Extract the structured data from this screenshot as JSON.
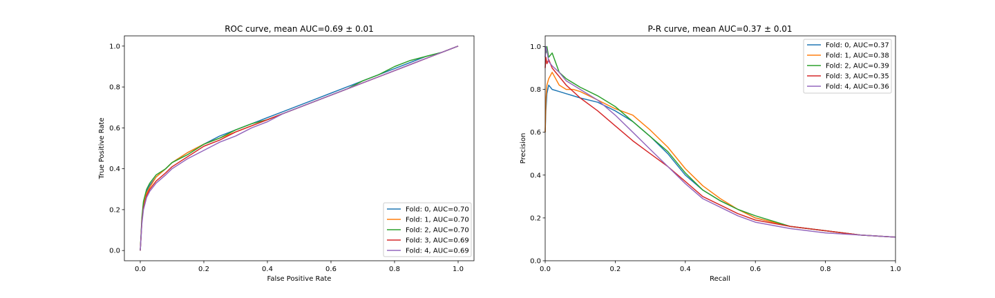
{
  "colors": {
    "fold0": "#1f77b4",
    "fold1": "#ff7f0e",
    "fold2": "#2ca02c",
    "fold3": "#d62728",
    "fold4": "#9467bd"
  },
  "chart_data": [
    {
      "type": "line",
      "title": "ROC curve, mean AUC=0.69 ± 0.01",
      "xlabel": "False Positive Rate",
      "ylabel": "True Positive Rate",
      "xlim": [
        -0.05,
        1.05
      ],
      "ylim": [
        -0.05,
        1.05
      ],
      "xticks": [
        0.0,
        0.2,
        0.4,
        0.6,
        0.8,
        1.0
      ],
      "yticks": [
        0.0,
        0.2,
        0.4,
        0.6,
        0.8,
        1.0
      ],
      "xtick_labels": [
        "0.0",
        "0.2",
        "0.4",
        "0.6",
        "0.8",
        "1.0"
      ],
      "ytick_labels": [
        "0.0",
        "0.2",
        "0.4",
        "0.6",
        "0.8",
        "1.0"
      ],
      "grid": false,
      "legend_position": "lower-right",
      "series": [
        {
          "name": "Fold: 0, AUC=0.70",
          "color_key": "fold0",
          "x": [
            0,
            0.005,
            0.01,
            0.02,
            0.03,
            0.05,
            0.08,
            0.1,
            0.15,
            0.2,
            0.25,
            0.3,
            0.35,
            0.4,
            0.45,
            0.5,
            0.55,
            0.6,
            0.65,
            0.7,
            0.75,
            0.8,
            0.85,
            0.9,
            0.95,
            1.0
          ],
          "y": [
            0,
            0.15,
            0.23,
            0.29,
            0.32,
            0.36,
            0.4,
            0.43,
            0.48,
            0.52,
            0.56,
            0.59,
            0.62,
            0.65,
            0.68,
            0.71,
            0.74,
            0.77,
            0.8,
            0.83,
            0.86,
            0.89,
            0.92,
            0.95,
            0.97,
            1.0
          ]
        },
        {
          "name": "Fold: 1, AUC=0.70",
          "color_key": "fold1",
          "x": [
            0,
            0.005,
            0.01,
            0.02,
            0.03,
            0.05,
            0.08,
            0.1,
            0.15,
            0.2,
            0.25,
            0.3,
            0.35,
            0.4,
            0.45,
            0.5,
            0.55,
            0.6,
            0.65,
            0.7,
            0.75,
            0.8,
            0.85,
            0.9,
            0.95,
            1.0
          ],
          "y": [
            0,
            0.14,
            0.22,
            0.28,
            0.31,
            0.36,
            0.4,
            0.43,
            0.48,
            0.52,
            0.55,
            0.58,
            0.61,
            0.64,
            0.67,
            0.7,
            0.73,
            0.76,
            0.79,
            0.82,
            0.85,
            0.88,
            0.91,
            0.94,
            0.97,
            1.0
          ]
        },
        {
          "name": "Fold: 2, AUC=0.70",
          "color_key": "fold2",
          "x": [
            0,
            0.005,
            0.01,
            0.02,
            0.03,
            0.05,
            0.08,
            0.1,
            0.15,
            0.2,
            0.25,
            0.3,
            0.35,
            0.4,
            0.45,
            0.5,
            0.55,
            0.6,
            0.65,
            0.7,
            0.75,
            0.8,
            0.85,
            0.9,
            0.95,
            1.0
          ],
          "y": [
            0,
            0.16,
            0.24,
            0.3,
            0.33,
            0.37,
            0.4,
            0.43,
            0.47,
            0.52,
            0.55,
            0.59,
            0.62,
            0.64,
            0.67,
            0.7,
            0.73,
            0.76,
            0.79,
            0.83,
            0.86,
            0.9,
            0.93,
            0.95,
            0.97,
            1.0
          ]
        },
        {
          "name": "Fold: 3, AUC=0.69",
          "color_key": "fold3",
          "x": [
            0,
            0.005,
            0.01,
            0.02,
            0.03,
            0.05,
            0.08,
            0.1,
            0.15,
            0.2,
            0.25,
            0.3,
            0.35,
            0.4,
            0.45,
            0.5,
            0.55,
            0.6,
            0.65,
            0.7,
            0.75,
            0.8,
            0.85,
            0.9,
            0.95,
            1.0
          ],
          "y": [
            0,
            0.14,
            0.21,
            0.27,
            0.3,
            0.34,
            0.38,
            0.41,
            0.46,
            0.51,
            0.54,
            0.58,
            0.61,
            0.64,
            0.67,
            0.7,
            0.73,
            0.76,
            0.79,
            0.82,
            0.85,
            0.88,
            0.91,
            0.94,
            0.97,
            1.0
          ]
        },
        {
          "name": "Fold: 4, AUC=0.69",
          "color_key": "fold4",
          "x": [
            0,
            0.005,
            0.01,
            0.02,
            0.03,
            0.05,
            0.08,
            0.1,
            0.15,
            0.2,
            0.25,
            0.3,
            0.35,
            0.4,
            0.45,
            0.5,
            0.55,
            0.6,
            0.65,
            0.7,
            0.75,
            0.8,
            0.85,
            0.9,
            0.95,
            1.0
          ],
          "y": [
            0,
            0.13,
            0.2,
            0.26,
            0.29,
            0.33,
            0.37,
            0.4,
            0.45,
            0.49,
            0.53,
            0.56,
            0.6,
            0.63,
            0.67,
            0.7,
            0.73,
            0.76,
            0.79,
            0.82,
            0.85,
            0.88,
            0.91,
            0.94,
            0.97,
            1.0
          ]
        }
      ]
    },
    {
      "type": "line",
      "title": "P-R curve, mean AUC=0.37 ± 0.01",
      "xlabel": "Recall",
      "ylabel": "Precision",
      "xlim": [
        0.0,
        1.0
      ],
      "ylim": [
        0.0,
        1.05
      ],
      "xticks": [
        0.0,
        0.2,
        0.4,
        0.6,
        0.8,
        1.0
      ],
      "yticks": [
        0.0,
        0.2,
        0.4,
        0.6,
        0.8,
        1.0
      ],
      "xtick_labels": [
        "0.0",
        "0.2",
        "0.4",
        "0.6",
        "0.8",
        "1.0"
      ],
      "ytick_labels": [
        "0.0",
        "0.2",
        "0.4",
        "0.6",
        "0.8",
        "1.0"
      ],
      "grid": false,
      "legend_position": "upper-right",
      "series": [
        {
          "name": "Fold: 0, AUC=0.37",
          "color_key": "fold0",
          "x": [
            0.0,
            0.002,
            0.005,
            0.01,
            0.02,
            0.04,
            0.06,
            0.08,
            0.1,
            0.15,
            0.2,
            0.25,
            0.3,
            0.35,
            0.4,
            0.45,
            0.5,
            0.55,
            0.6,
            0.7,
            0.8,
            0.9,
            1.0
          ],
          "y": [
            0.6,
            0.7,
            0.78,
            0.82,
            0.8,
            0.79,
            0.78,
            0.77,
            0.76,
            0.74,
            0.7,
            0.65,
            0.58,
            0.5,
            0.4,
            0.33,
            0.28,
            0.24,
            0.2,
            0.16,
            0.14,
            0.12,
            0.11
          ]
        },
        {
          "name": "Fold: 1, AUC=0.38",
          "color_key": "fold1",
          "x": [
            0.0,
            0.002,
            0.005,
            0.01,
            0.02,
            0.04,
            0.06,
            0.08,
            0.1,
            0.15,
            0.2,
            0.25,
            0.3,
            0.35,
            0.4,
            0.45,
            0.5,
            0.55,
            0.6,
            0.7,
            0.8,
            0.9,
            1.0
          ],
          "y": [
            0.6,
            0.75,
            0.82,
            0.85,
            0.88,
            0.82,
            0.8,
            0.8,
            0.79,
            0.75,
            0.71,
            0.68,
            0.61,
            0.53,
            0.43,
            0.35,
            0.29,
            0.24,
            0.2,
            0.16,
            0.14,
            0.12,
            0.11
          ]
        },
        {
          "name": "Fold: 2, AUC=0.39",
          "color_key": "fold2",
          "x": [
            0.0,
            0.002,
            0.005,
            0.01,
            0.02,
            0.04,
            0.06,
            0.08,
            0.1,
            0.15,
            0.2,
            0.25,
            0.3,
            0.35,
            0.4,
            0.45,
            0.5,
            0.55,
            0.6,
            0.7,
            0.8,
            0.9,
            1.0
          ],
          "y": [
            1.0,
            0.97,
            1.0,
            0.95,
            0.97,
            0.88,
            0.85,
            0.83,
            0.81,
            0.77,
            0.72,
            0.65,
            0.58,
            0.51,
            0.41,
            0.33,
            0.28,
            0.24,
            0.21,
            0.16,
            0.14,
            0.12,
            0.11
          ]
        },
        {
          "name": "Fold: 3, AUC=0.35",
          "color_key": "fold3",
          "x": [
            0.0,
            0.002,
            0.005,
            0.01,
            0.02,
            0.04,
            0.06,
            0.08,
            0.1,
            0.15,
            0.2,
            0.25,
            0.3,
            0.35,
            0.4,
            0.45,
            0.5,
            0.55,
            0.6,
            0.7,
            0.8,
            0.9,
            1.0
          ],
          "y": [
            0.9,
            0.95,
            0.92,
            0.94,
            0.9,
            0.86,
            0.82,
            0.79,
            0.76,
            0.7,
            0.63,
            0.56,
            0.5,
            0.44,
            0.37,
            0.3,
            0.26,
            0.22,
            0.19,
            0.16,
            0.14,
            0.12,
            0.11
          ]
        },
        {
          "name": "Fold: 4, AUC=0.36",
          "color_key": "fold4",
          "x": [
            0.0,
            0.002,
            0.005,
            0.01,
            0.02,
            0.04,
            0.06,
            0.08,
            0.1,
            0.15,
            0.2,
            0.25,
            0.3,
            0.35,
            0.4,
            0.45,
            0.5,
            0.55,
            0.6,
            0.7,
            0.8,
            0.9,
            1.0
          ],
          "y": [
            0.95,
            1.0,
            0.98,
            0.93,
            0.91,
            0.88,
            0.84,
            0.82,
            0.8,
            0.75,
            0.68,
            0.6,
            0.52,
            0.44,
            0.36,
            0.29,
            0.25,
            0.21,
            0.18,
            0.15,
            0.13,
            0.12,
            0.11
          ]
        }
      ]
    }
  ]
}
